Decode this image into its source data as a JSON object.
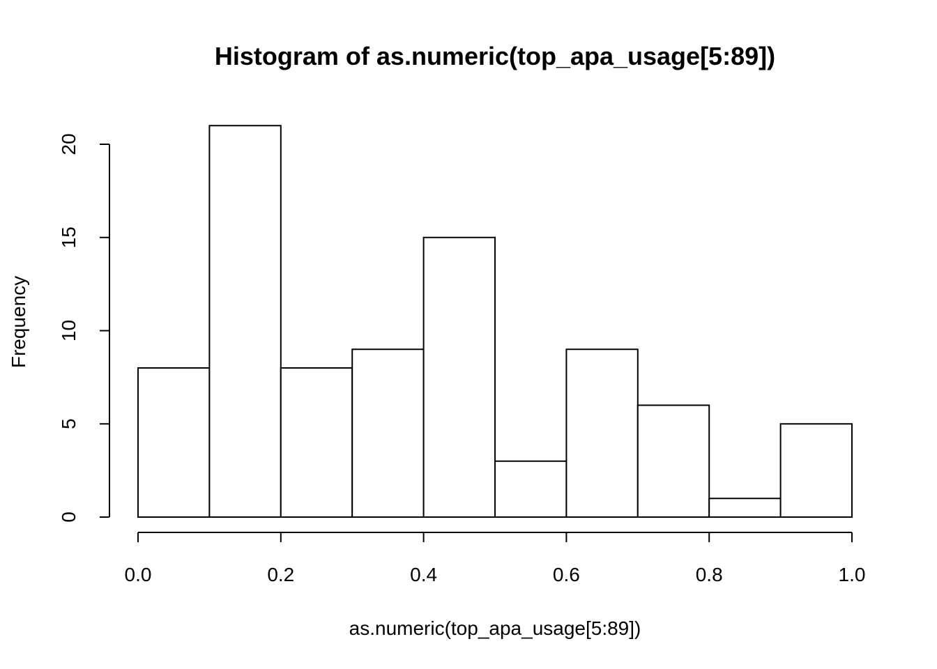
{
  "chart_data": {
    "type": "bar",
    "title": "Histogram of as.numeric(top_apa_usage[5:89])",
    "xlabel": "as.numeric(top_apa_usage[5:89])",
    "ylabel": "Frequency",
    "bins": [
      {
        "from": 0.0,
        "to": 0.1,
        "count": 8
      },
      {
        "from": 0.1,
        "to": 0.2,
        "count": 21
      },
      {
        "from": 0.2,
        "to": 0.3,
        "count": 8
      },
      {
        "from": 0.3,
        "to": 0.4,
        "count": 9
      },
      {
        "from": 0.4,
        "to": 0.5,
        "count": 15
      },
      {
        "from": 0.5,
        "to": 0.6,
        "count": 3
      },
      {
        "from": 0.6,
        "to": 0.7,
        "count": 9
      },
      {
        "from": 0.7,
        "to": 0.8,
        "count": 6
      },
      {
        "from": 0.8,
        "to": 0.9,
        "count": 1
      },
      {
        "from": 0.9,
        "to": 1.0,
        "count": 5
      }
    ],
    "xlim": [
      0,
      1
    ],
    "ylim": [
      0,
      21
    ],
    "x_ticks": [
      "0.0",
      "0.2",
      "0.4",
      "0.6",
      "0.8",
      "1.0"
    ],
    "y_ticks": [
      "0",
      "5",
      "10",
      "15",
      "20"
    ],
    "grid": false,
    "bar_fill": "#ffffff",
    "bar_stroke": "#000000"
  }
}
